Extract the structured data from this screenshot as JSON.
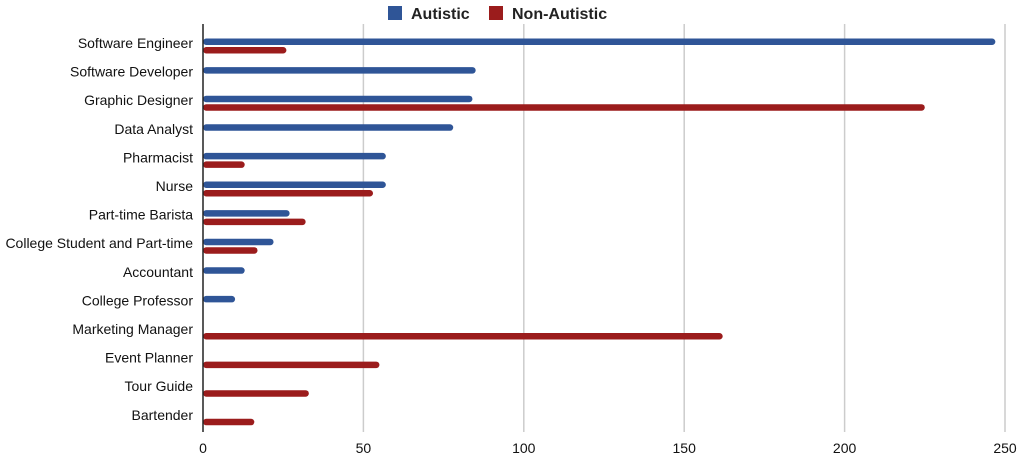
{
  "chart_data": {
    "type": "bar",
    "orientation": "horizontal",
    "title": "",
    "xlabel": "",
    "ylabel": "",
    "categories": [
      "Software Engineer",
      "Software Developer",
      "Graphic Designer",
      "Data Analyst",
      "Pharmacist",
      "Nurse",
      "Part-time Barista",
      "College Student and Part-time",
      "Accountant",
      "College Professor",
      "Marketing Manager",
      "Event Planner",
      "Tour Guide",
      "Bartender"
    ],
    "series": [
      {
        "name": "Autistic",
        "color": "#2f5597",
        "values": [
          247,
          85,
          84,
          78,
          57,
          57,
          27,
          22,
          13,
          10,
          0,
          0,
          0,
          0
        ]
      },
      {
        "name": "Non-Autistic",
        "color": "#9b1c1c",
        "values": [
          26,
          0,
          225,
          0,
          13,
          53,
          32,
          17,
          0,
          0,
          162,
          55,
          33,
          16
        ]
      }
    ],
    "xlim": [
      0,
      250
    ],
    "xticks": [
      0,
      50,
      100,
      150,
      200,
      250
    ],
    "grid": true,
    "legend_position": "top"
  }
}
